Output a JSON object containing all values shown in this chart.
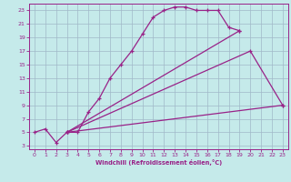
{
  "background_color": "#c5eaea",
  "line_color": "#992288",
  "grid_color": "#a0b8c8",
  "xlabel": "Windchill (Refroidissement éolien,°C)",
  "xlim": [
    -0.5,
    23.5
  ],
  "ylim": [
    2.5,
    24
  ],
  "xticks": [
    0,
    1,
    2,
    3,
    4,
    5,
    6,
    7,
    8,
    9,
    10,
    11,
    12,
    13,
    14,
    15,
    16,
    17,
    18,
    19,
    20,
    21,
    22,
    23
  ],
  "yticks": [
    3,
    5,
    7,
    9,
    11,
    13,
    15,
    17,
    19,
    21,
    23
  ],
  "curve1_x": [
    0,
    1,
    2,
    3,
    4,
    5,
    6,
    7,
    8,
    9,
    10,
    11,
    12,
    13,
    14,
    15,
    16,
    17,
    18,
    19
  ],
  "curve1_y": [
    5,
    5.5,
    3.5,
    5,
    5,
    8,
    10,
    13,
    15,
    17,
    19.5,
    22,
    23,
    23.5,
    23.5,
    23,
    23,
    23,
    20.5,
    20
  ],
  "curve2_x": [
    3,
    19
  ],
  "curve2_y": [
    5,
    20
  ],
  "curve3_x": [
    3,
    20,
    23
  ],
  "curve3_y": [
    5,
    17,
    9
  ],
  "curve4_x": [
    3,
    23
  ],
  "curve4_y": [
    5,
    9
  ]
}
